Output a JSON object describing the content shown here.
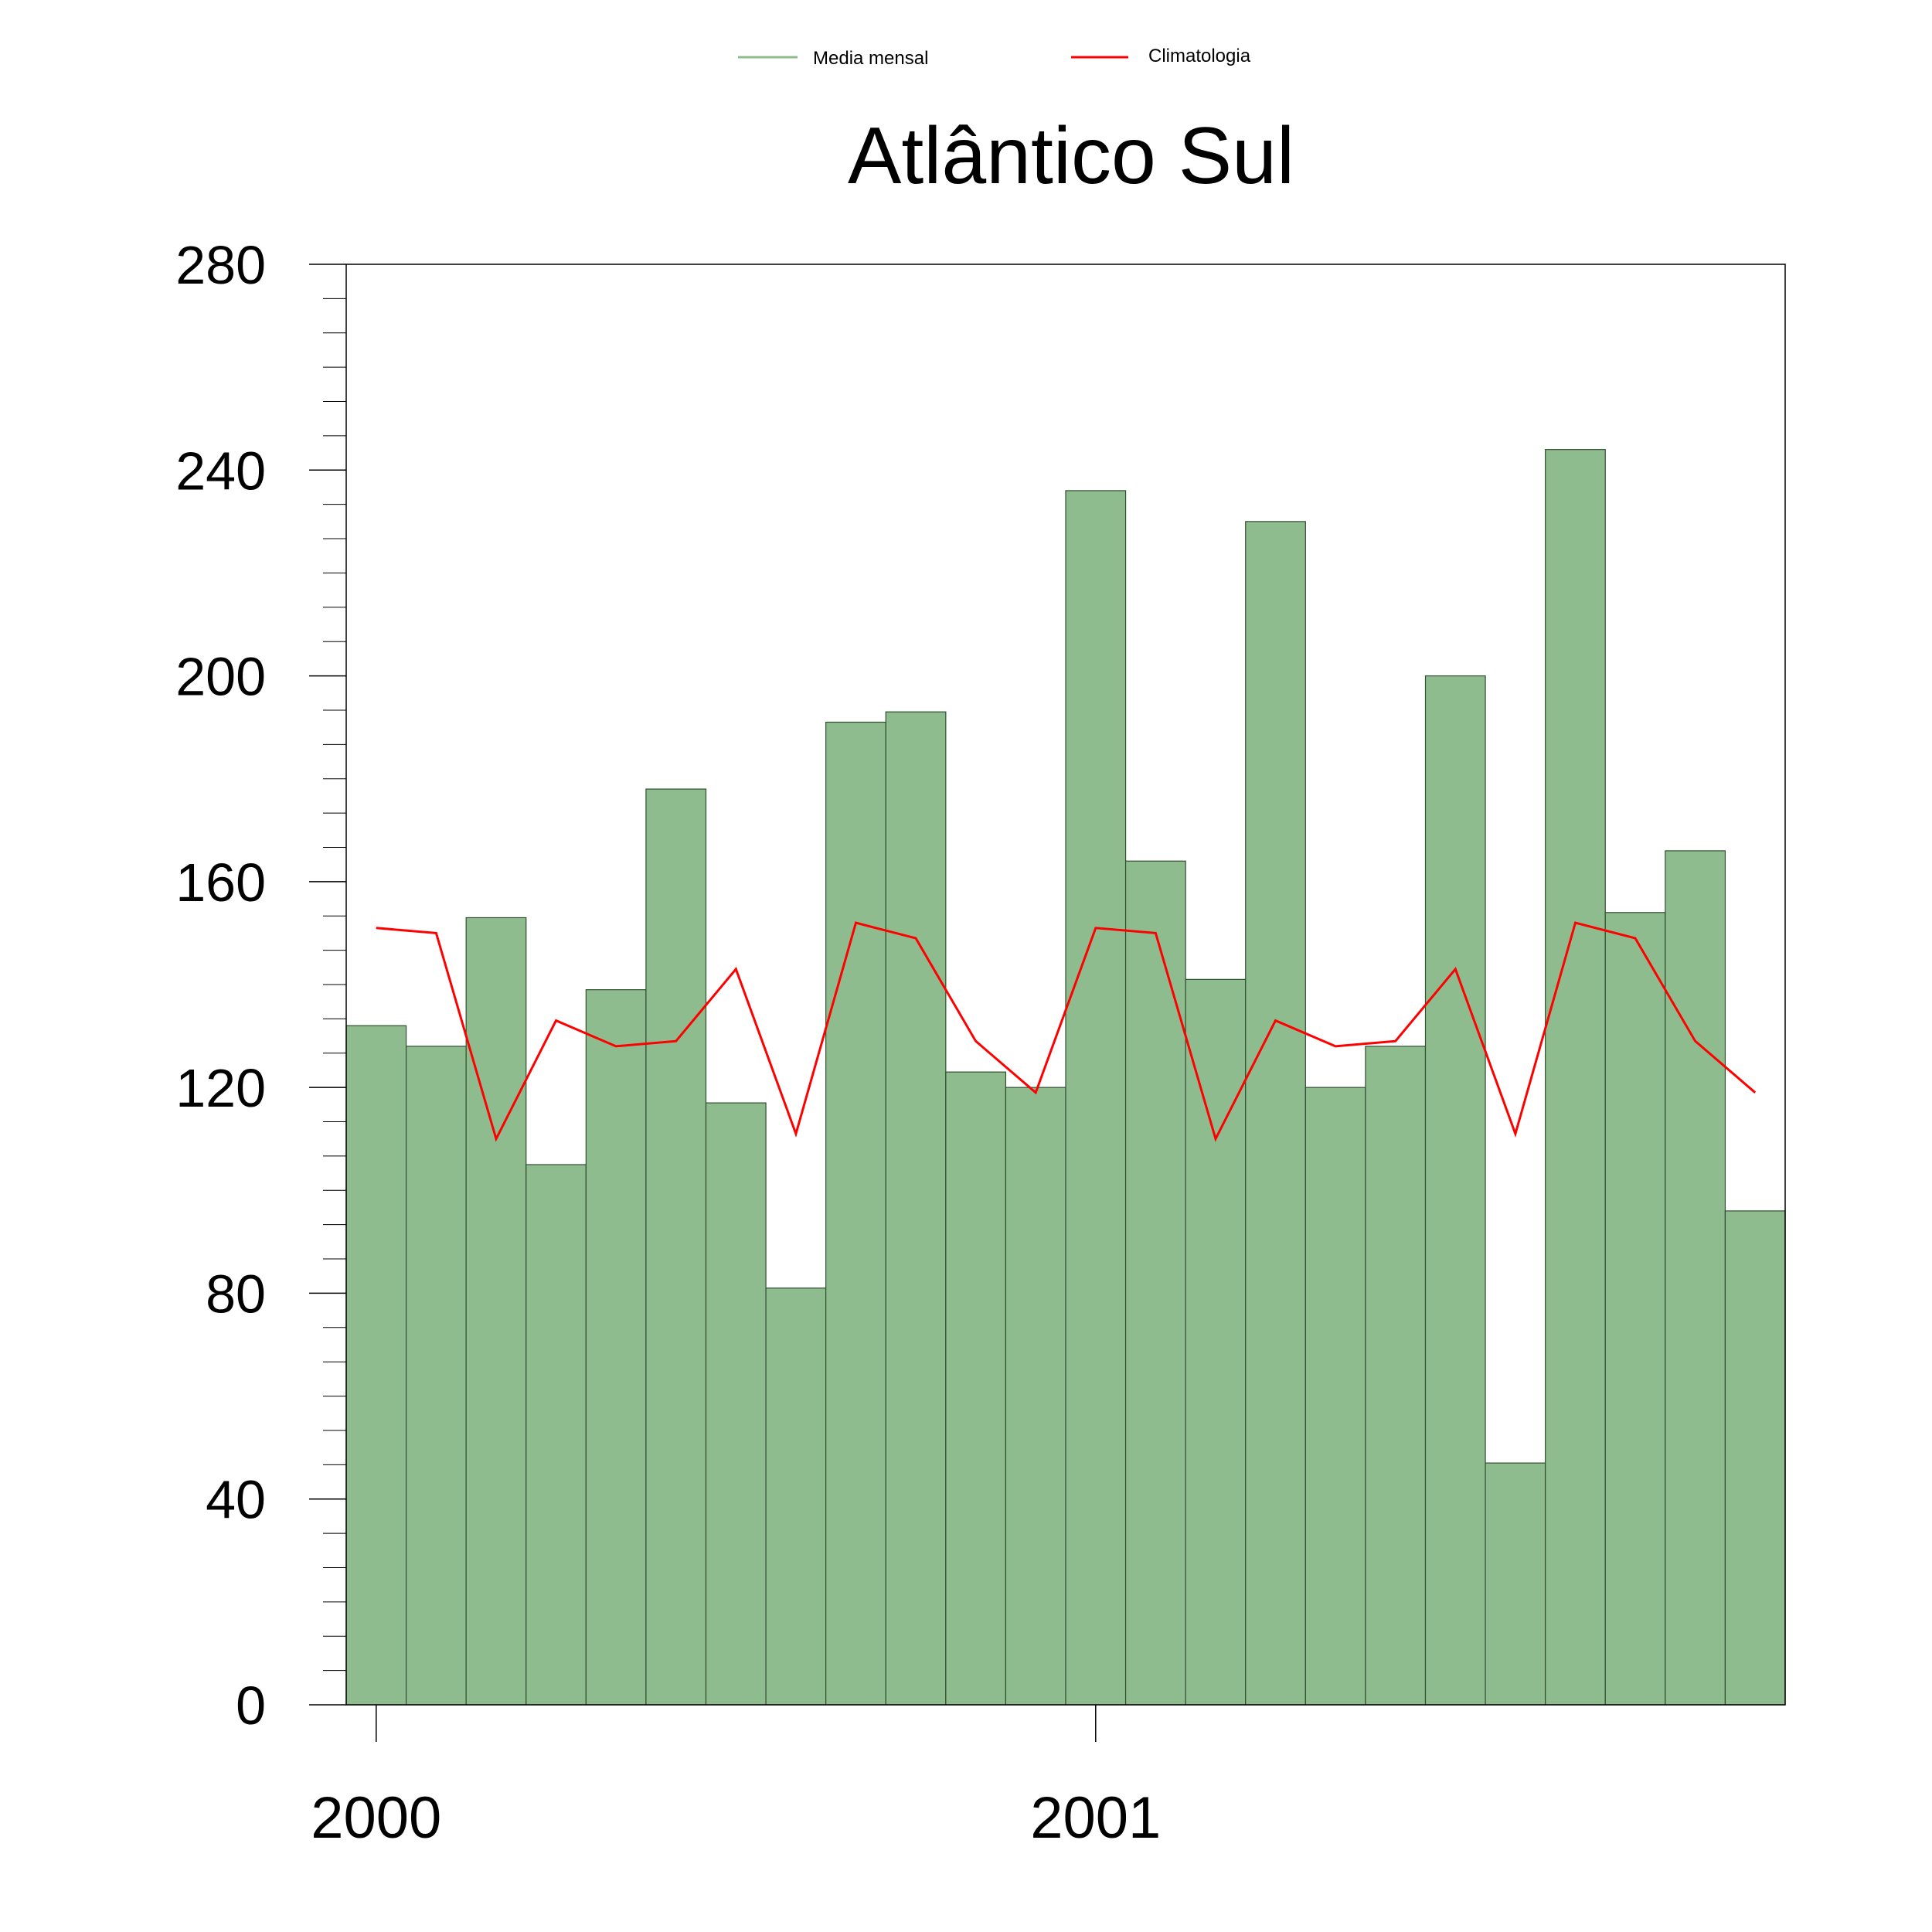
{
  "chart_data": {
    "type": "bar",
    "title": "Atlântico Sul",
    "xlabel": "",
    "ylabel": "",
    "ylim": [
      0,
      280
    ],
    "yticks": [
      0,
      40,
      80,
      120,
      160,
      200,
      240,
      280
    ],
    "xticks": [
      {
        "label": "2000",
        "month_index": 0
      },
      {
        "label": "2001",
        "month_index": 12
      }
    ],
    "categories": [
      "2000-01",
      "2000-02",
      "2000-03",
      "2000-04",
      "2000-05",
      "2000-06",
      "2000-07",
      "2000-08",
      "2000-09",
      "2000-10",
      "2000-11",
      "2000-12",
      "2001-01",
      "2001-02",
      "2001-03",
      "2001-04",
      "2001-05",
      "2001-06",
      "2001-07",
      "2001-08",
      "2001-09",
      "2001-10",
      "2001-11",
      "2001-12"
    ],
    "series": [
      {
        "name": "Media mensal",
        "type": "bar",
        "color": "#8fbc8f",
        "values": [
          132,
          128,
          153,
          105,
          139,
          178,
          117,
          81,
          191,
          193,
          123,
          120,
          236,
          164,
          141,
          230,
          120,
          128,
          200,
          47,
          244,
          154,
          166,
          96
        ]
      },
      {
        "name": "Climatologia",
        "type": "line",
        "color": "#ff0000",
        "values": [
          151,
          150,
          110,
          133,
          128,
          129,
          143,
          111,
          152,
          149,
          129,
          119,
          151,
          150,
          110,
          133,
          128,
          129,
          143,
          111,
          152,
          149,
          129,
          119
        ]
      }
    ],
    "legend_position": "top-center",
    "grid": false
  }
}
